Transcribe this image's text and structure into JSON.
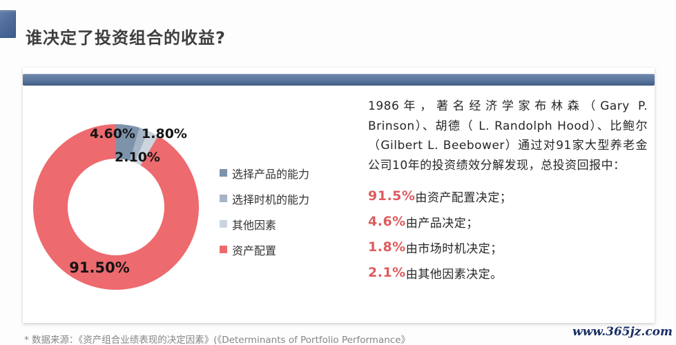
{
  "slide": {
    "title": "谁决定了投资组合的收益?",
    "footer": "* 数据来源：《资产组合业绩表现的决定因素》(《Determinants of Portfolio Performance》",
    "watermark": "www.365jz.com"
  },
  "colors": {
    "accent_bar_blue": "#5c779e",
    "title_bullet_blue": "#4c6997",
    "stat_percent_red": "#dd5c5e"
  },
  "chart_data": {
    "type": "pie",
    "subtype": "donut",
    "start_angle_deg": 0,
    "direction": "clockwise",
    "legend_position": "right",
    "slices": [
      {
        "label": "选择产品的能力",
        "value": 4.6,
        "display": "4.60%",
        "color": "#7d93ac"
      },
      {
        "label": "选择时机的能力",
        "value": 1.8,
        "display": "1.80%",
        "color": "#a6b4c5"
      },
      {
        "label": "其他因素",
        "value": 2.1,
        "display": "2.10%",
        "color": "#ccd5de"
      },
      {
        "label": "资产配置",
        "value": 91.5,
        "display": "91.50%",
        "color": "#ed6a6e"
      }
    ]
  },
  "body": {
    "paragraph": "1986年，著名经济学家布林森（Gary P. Brinson）、胡德（ L. Randolph Hood）、比鲍尔（Gilbert L. Beebower）通过对91家大型养老金公司10年的投资绩效分解发现，总投资回报中：",
    "stats": [
      {
        "pct": "91.5%",
        "text": "由资产配置决定；"
      },
      {
        "pct": "4.6%",
        "text": "由产品决定；"
      },
      {
        "pct": "1.8%",
        "text": "由市场时机决定；"
      },
      {
        "pct": "2.1%",
        "text": "由其他因素决定。"
      }
    ]
  }
}
